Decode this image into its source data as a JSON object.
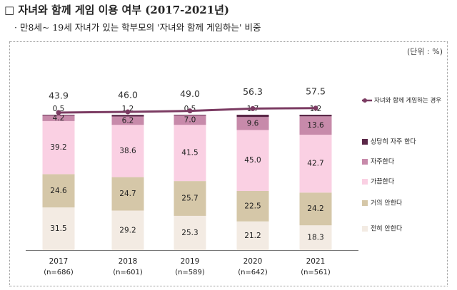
{
  "header": {
    "title": "□ 자녀와 함께 게임 이용 여부 (2017-2021년)",
    "subtitle": "· 만8세~ 19세 자녀가 있는 학부모의 '자녀와 함께 게임하는' 비중"
  },
  "chart_data": {
    "type": "bar",
    "stacked": true,
    "unit_label": "(단위 : %)",
    "categories": [
      "2017",
      "2018",
      "2019",
      "2020",
      "2021"
    ],
    "sample_sizes": [
      "(n=686)",
      "(n=601)",
      "(n=589)",
      "(n=642)",
      "(n=561)"
    ],
    "series": [
      {
        "name": "전혀 안한다",
        "color": "#f3ebe3",
        "values": [
          31.5,
          29.2,
          25.3,
          21.2,
          18.3
        ]
      },
      {
        "name": "거의 안한다",
        "color": "#d5c7a8",
        "values": [
          24.6,
          24.7,
          25.7,
          22.5,
          24.2
        ]
      },
      {
        "name": "가끔한다",
        "color": "#fad0e3",
        "values": [
          39.2,
          38.6,
          41.5,
          45.0,
          42.7
        ]
      },
      {
        "name": "자주한다",
        "color": "#c78aaa",
        "values": [
          4.2,
          6.2,
          7.0,
          9.6,
          13.6
        ]
      },
      {
        "name": "상당히 자주 한다",
        "color": "#5a2747",
        "values": [
          0.5,
          1.2,
          0.5,
          1.7,
          1.2
        ]
      }
    ],
    "line_series": {
      "name": "자녀와 함께 게임하는 경우",
      "color": "#7b3b62",
      "values": [
        43.9,
        46.0,
        49.0,
        56.3,
        57.5
      ]
    },
    "legend_position": "right",
    "grid": false
  }
}
